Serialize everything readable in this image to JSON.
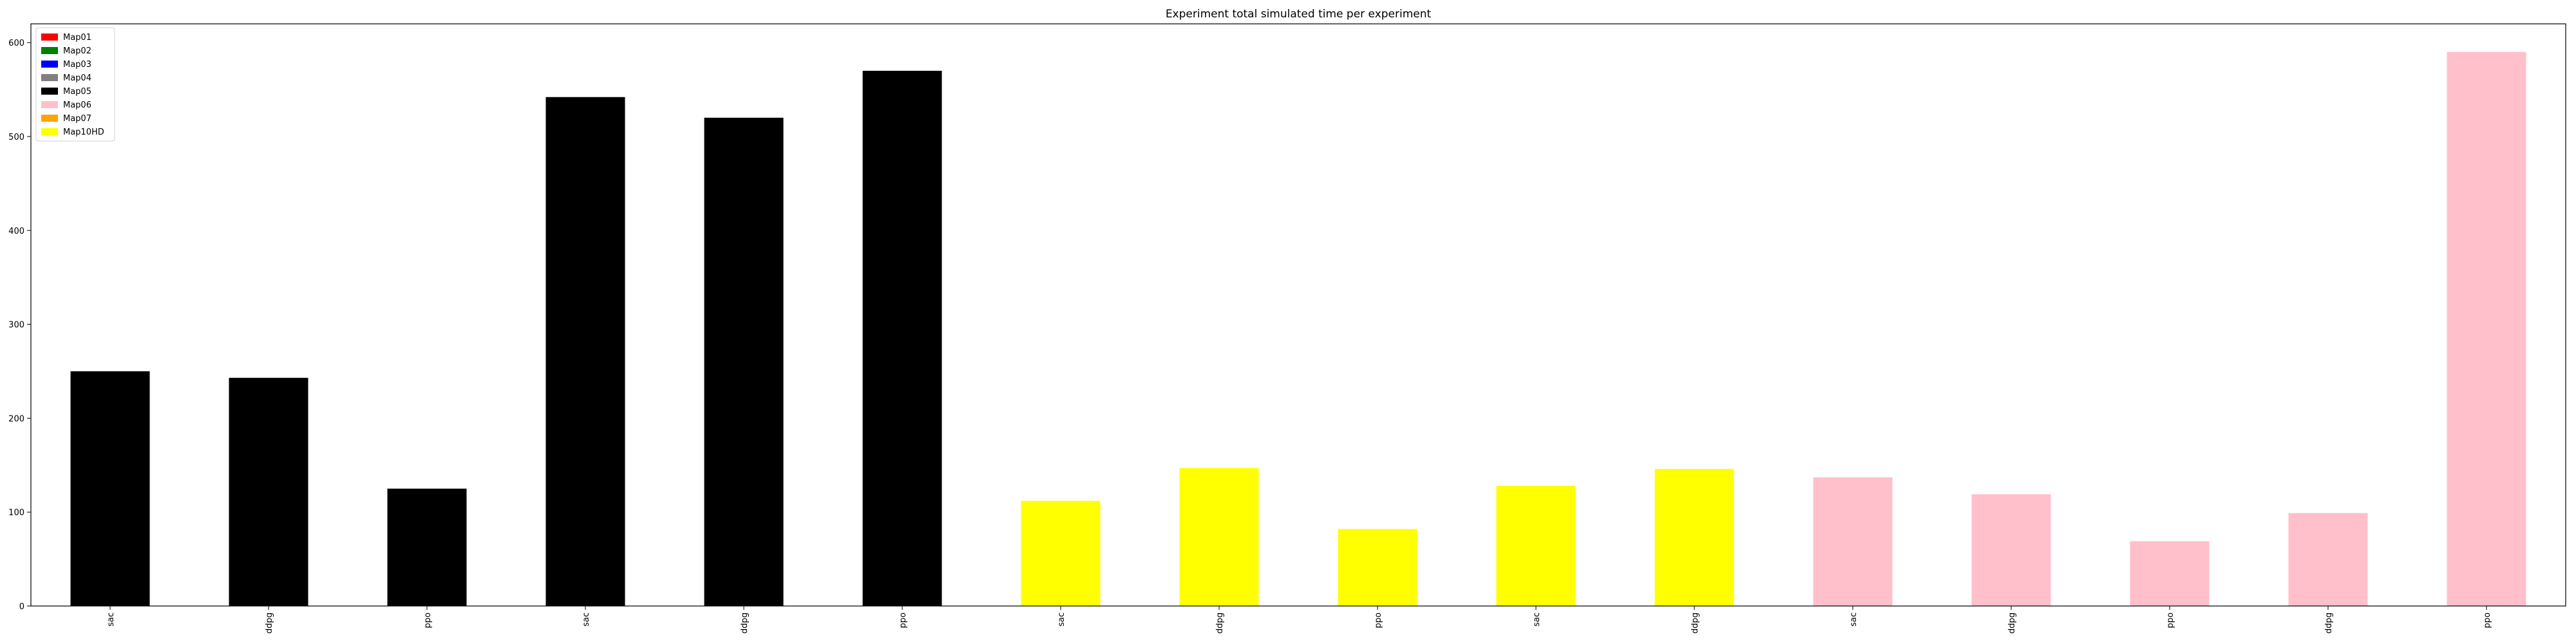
{
  "chart_data": {
    "type": "bar",
    "title": "Experiment total simulated time per experiment",
    "xlabel": "",
    "ylabel": "",
    "ylim": [
      0,
      620
    ],
    "yticks": [
      0,
      100,
      200,
      300,
      400,
      500,
      600
    ],
    "grid": false,
    "legend_position": "top-left",
    "categories": [
      "sac",
      "ddpg",
      "ppo",
      "sac",
      "ddpg",
      "ppo",
      "sac",
      "ddpg",
      "ppo",
      "sac",
      "ddpg",
      "sac",
      "ddpg",
      "ppo",
      "ddpg",
      "ppo"
    ],
    "values": [
      250,
      243,
      125,
      542,
      520,
      570,
      112,
      147,
      82,
      128,
      146,
      137,
      119,
      69,
      99,
      590
    ],
    "bar_series": [
      "Map05",
      "Map05",
      "Map05",
      "Map05",
      "Map05",
      "Map05",
      "Map10HD",
      "Map10HD",
      "Map10HD",
      "Map10HD",
      "Map10HD",
      "Map06",
      "Map06",
      "Map06",
      "Map06",
      "Map06"
    ],
    "legend": [
      {
        "name": "Map01",
        "color": "#ff0000"
      },
      {
        "name": "Map02",
        "color": "#008000"
      },
      {
        "name": "Map03",
        "color": "#0000ff"
      },
      {
        "name": "Map04",
        "color": "#808080"
      },
      {
        "name": "Map05",
        "color": "#000000"
      },
      {
        "name": "Map06",
        "color": "#ffc0cb"
      },
      {
        "name": "Map07",
        "color": "#ffa500"
      },
      {
        "name": "Map10HD",
        "color": "#ffff00"
      }
    ]
  }
}
